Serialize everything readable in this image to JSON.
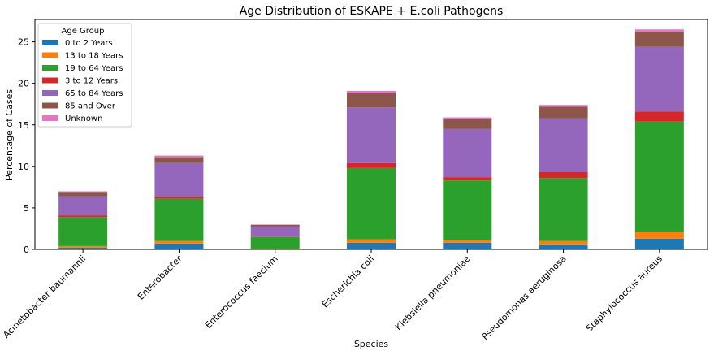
{
  "chart_data": {
    "type": "bar",
    "stacked": true,
    "title": "Age Distribution of ESKAPE + E.coli Pathogens",
    "xlabel": "Species",
    "ylabel": "Percentage of Cases",
    "ylim": [
      0,
      27.7
    ],
    "yticks": [
      0,
      5,
      10,
      15,
      20,
      25
    ],
    "categories": [
      "Acinetobacter baumannii",
      "Enterobacter",
      "Enterococcus faecium",
      "Escherichia coli",
      "Klebsiella pneumoniae",
      "Pseudomonas aeruginosa",
      "Staphylococcus aureus"
    ],
    "legend": {
      "title": "Age Group",
      "position": "top-left"
    },
    "series": [
      {
        "name": "0 to 2 Years",
        "color": "#1f77b4",
        "values": [
          0.2,
          0.7,
          0.05,
          0.8,
          0.8,
          0.6,
          1.3
        ]
      },
      {
        "name": "13 to 18 Years",
        "color": "#ff7f0e",
        "values": [
          0.2,
          0.3,
          0.05,
          0.4,
          0.3,
          0.4,
          0.8
        ]
      },
      {
        "name": "19 to 64 Years",
        "color": "#2ca02c",
        "values": [
          3.5,
          5.1,
          1.4,
          8.6,
          7.2,
          7.6,
          13.3
        ]
      },
      {
        "name": "3 to 12 Years",
        "color": "#d62728",
        "values": [
          0.2,
          0.3,
          0.05,
          0.6,
          0.4,
          0.7,
          1.2
        ]
      },
      {
        "name": "65 to 84 Years",
        "color": "#9467bd",
        "values": [
          2.3,
          4.0,
          1.2,
          6.7,
          5.8,
          6.5,
          7.8
        ]
      },
      {
        "name": "85 and Over",
        "color": "#8c564b",
        "values": [
          0.5,
          0.7,
          0.2,
          1.7,
          1.2,
          1.4,
          1.8
        ]
      },
      {
        "name": "Unknown",
        "color": "#e377c2",
        "values": [
          0.1,
          0.2,
          0.05,
          0.3,
          0.2,
          0.2,
          0.3
        ]
      }
    ]
  }
}
